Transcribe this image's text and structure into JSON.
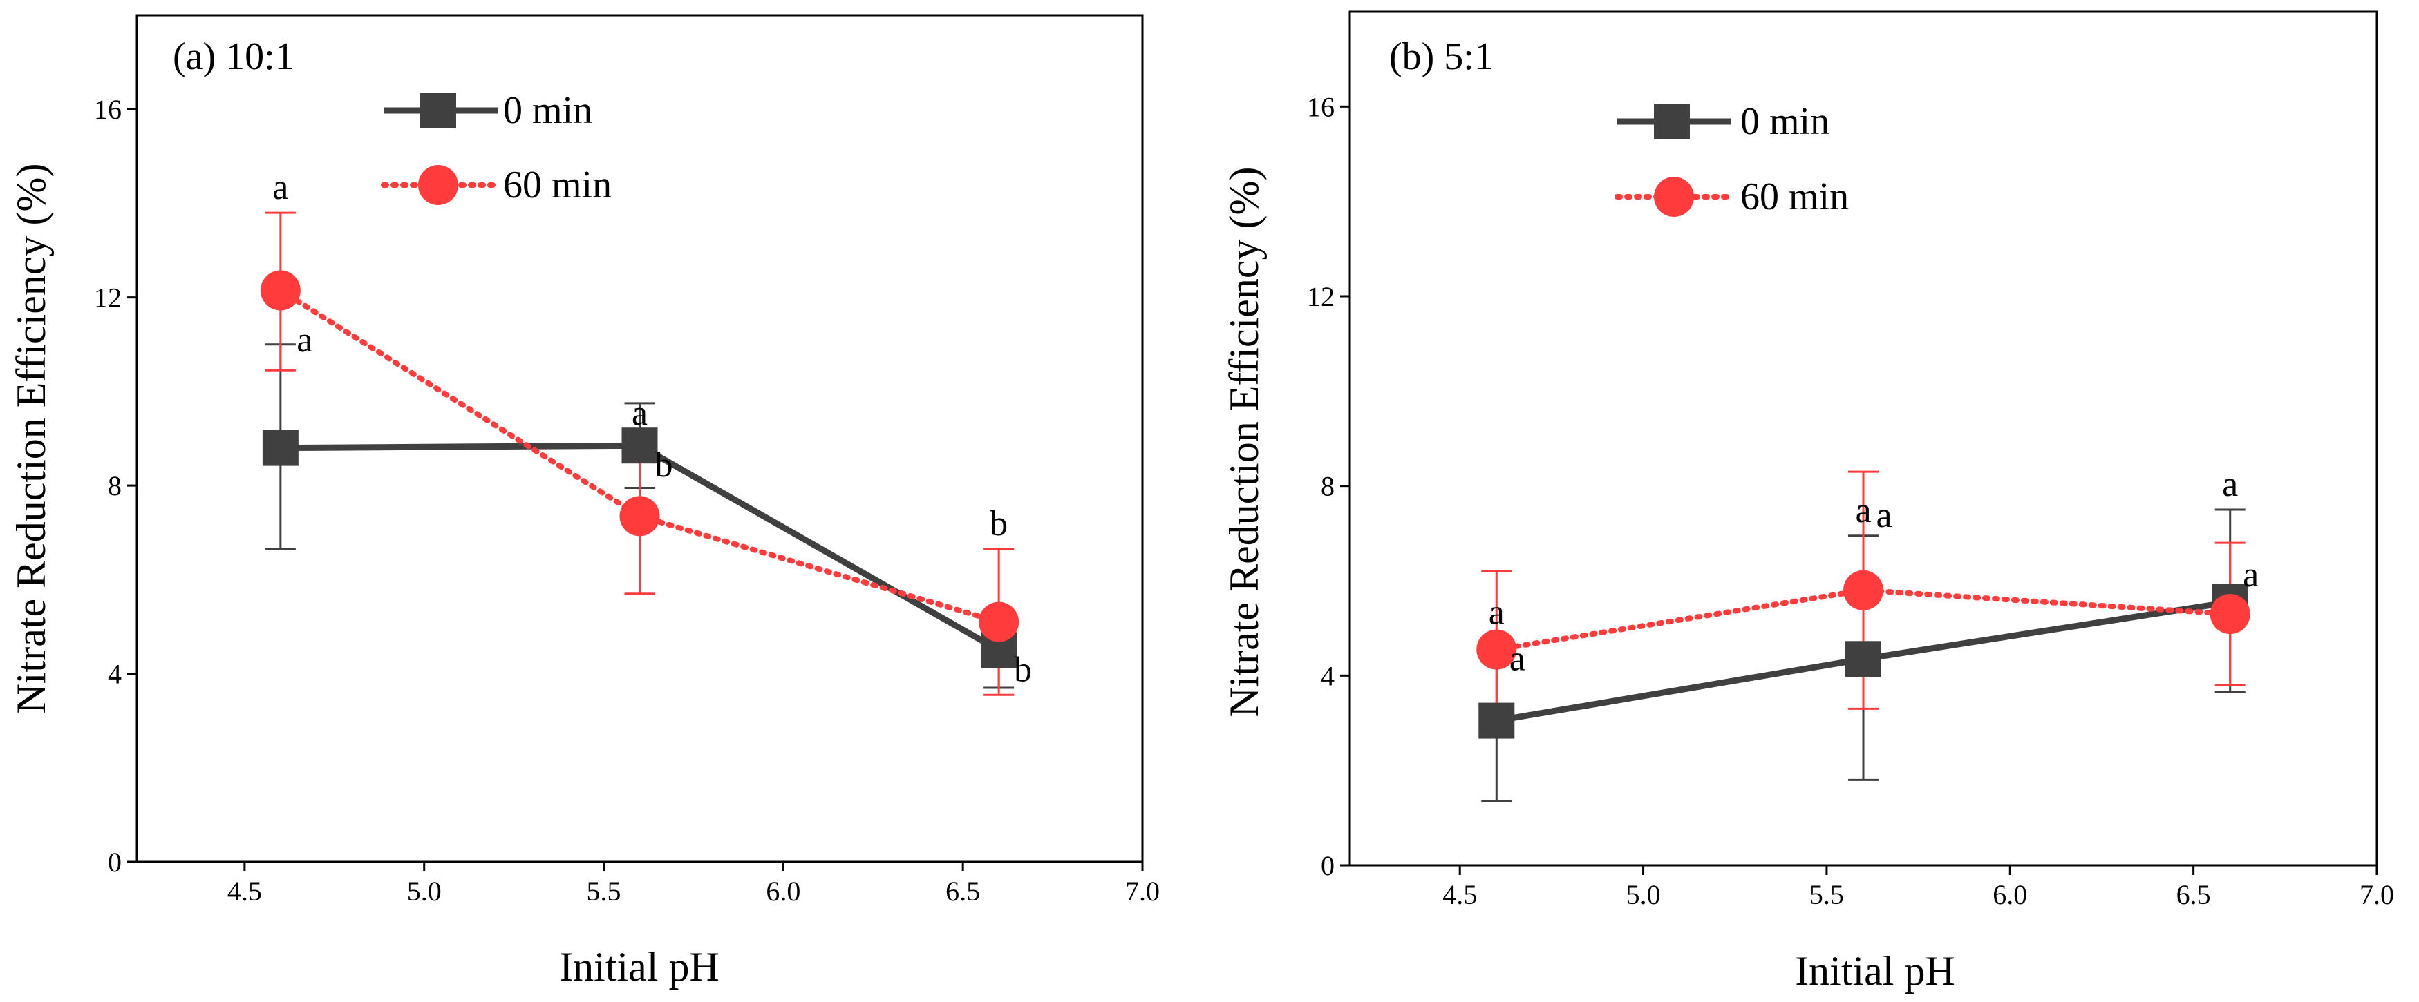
{
  "chart_data": [
    {
      "type": "line",
      "title": "(a) 10:1",
      "xlabel": "Initial pH",
      "ylabel": "Nitrate Reduction Efficiency (%)",
      "xlim": [
        4.2,
        7.0
      ],
      "ylim": [
        0,
        18
      ],
      "xticks": [
        4.5,
        5.0,
        5.5,
        6.0,
        6.5,
        7.0
      ],
      "xtick_labels": [
        "4.5",
        "5.0",
        "5.5",
        "6.0",
        "6.5",
        "7.0"
      ],
      "yticks": [
        0,
        4,
        8,
        12,
        16
      ],
      "ytick_labels": [
        "0",
        "4",
        "8",
        "12",
        "16"
      ],
      "legend_position": "top-center",
      "series": [
        {
          "name": "0 min",
          "color": "#404040",
          "line_style": "solid",
          "marker": "square",
          "x": [
            4.6,
            5.6,
            6.6
          ],
          "y": [
            8.8,
            8.85,
            4.5
          ],
          "err_low": [
            6.65,
            7.95,
            3.7
          ],
          "err_high": [
            11.0,
            9.75,
            5.3
          ],
          "letters": [
            "a",
            "b",
            "b"
          ]
        },
        {
          "name": "60 min",
          "color": "#ff3b3b",
          "line_style": "dotted",
          "marker": "circle",
          "x": [
            4.6,
            5.6,
            6.6
          ],
          "y": [
            12.15,
            7.35,
            5.1
          ],
          "err_low": [
            10.45,
            5.7,
            3.55
          ],
          "err_high": [
            13.8,
            9.0,
            6.65
          ],
          "letters": [
            "a",
            "a",
            "b"
          ]
        }
      ]
    },
    {
      "type": "line",
      "title": "(b) 5:1",
      "xlabel": "Initial pH",
      "ylabel": "Nitrate Reduction Efficiency (%)",
      "xlim": [
        4.2,
        7.0
      ],
      "ylim": [
        0,
        18
      ],
      "xticks": [
        4.5,
        5.0,
        5.5,
        6.0,
        6.5,
        7.0
      ],
      "xtick_labels": [
        "4.5",
        "5.0",
        "5.5",
        "6.0",
        "6.5",
        "7.0"
      ],
      "yticks": [
        0,
        4,
        8,
        12,
        16
      ],
      "ytick_labels": [
        "0",
        "4",
        "8",
        "12",
        "16"
      ],
      "legend_position": "top-center",
      "series": [
        {
          "name": "0 min",
          "color": "#404040",
          "line_style": "solid",
          "marker": "square",
          "x": [
            4.6,
            5.6,
            6.6
          ],
          "y": [
            3.05,
            4.35,
            5.55
          ],
          "err_low": [
            1.35,
            1.8,
            3.65
          ],
          "err_high": [
            4.8,
            6.95,
            7.5
          ],
          "letters": [
            "a",
            "a",
            "a"
          ]
        },
        {
          "name": "60 min",
          "color": "#ff3b3b",
          "line_style": "dotted",
          "marker": "circle",
          "x": [
            4.6,
            5.6,
            6.6
          ],
          "y": [
            4.55,
            5.8,
            5.3
          ],
          "err_low": [
            2.95,
            3.3,
            3.8
          ],
          "err_high": [
            6.2,
            8.3,
            6.8
          ],
          "letters": [
            "a",
            "a",
            "a"
          ]
        }
      ]
    }
  ]
}
